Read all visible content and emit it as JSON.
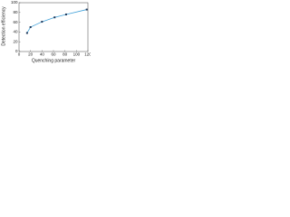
{
  "chart_data": {
    "type": "line",
    "x_label": "Quenching parameter",
    "y_label": "Detection efficiency",
    "x": [
      14,
      20,
      40,
      62,
      82,
      118
    ],
    "series": [
      {
        "values": [
          38,
          50,
          61,
          70,
          76,
          86
        ],
        "color": "#3fa0d8",
        "marker_color": "#1d3557"
      }
    ],
    "xlim": [
      0,
      120
    ],
    "ylim": [
      0,
      100
    ],
    "xticks": [
      0,
      20,
      40,
      60,
      80,
      100,
      120
    ],
    "yticks": [
      0,
      20,
      40,
      60,
      80,
      100
    ]
  }
}
